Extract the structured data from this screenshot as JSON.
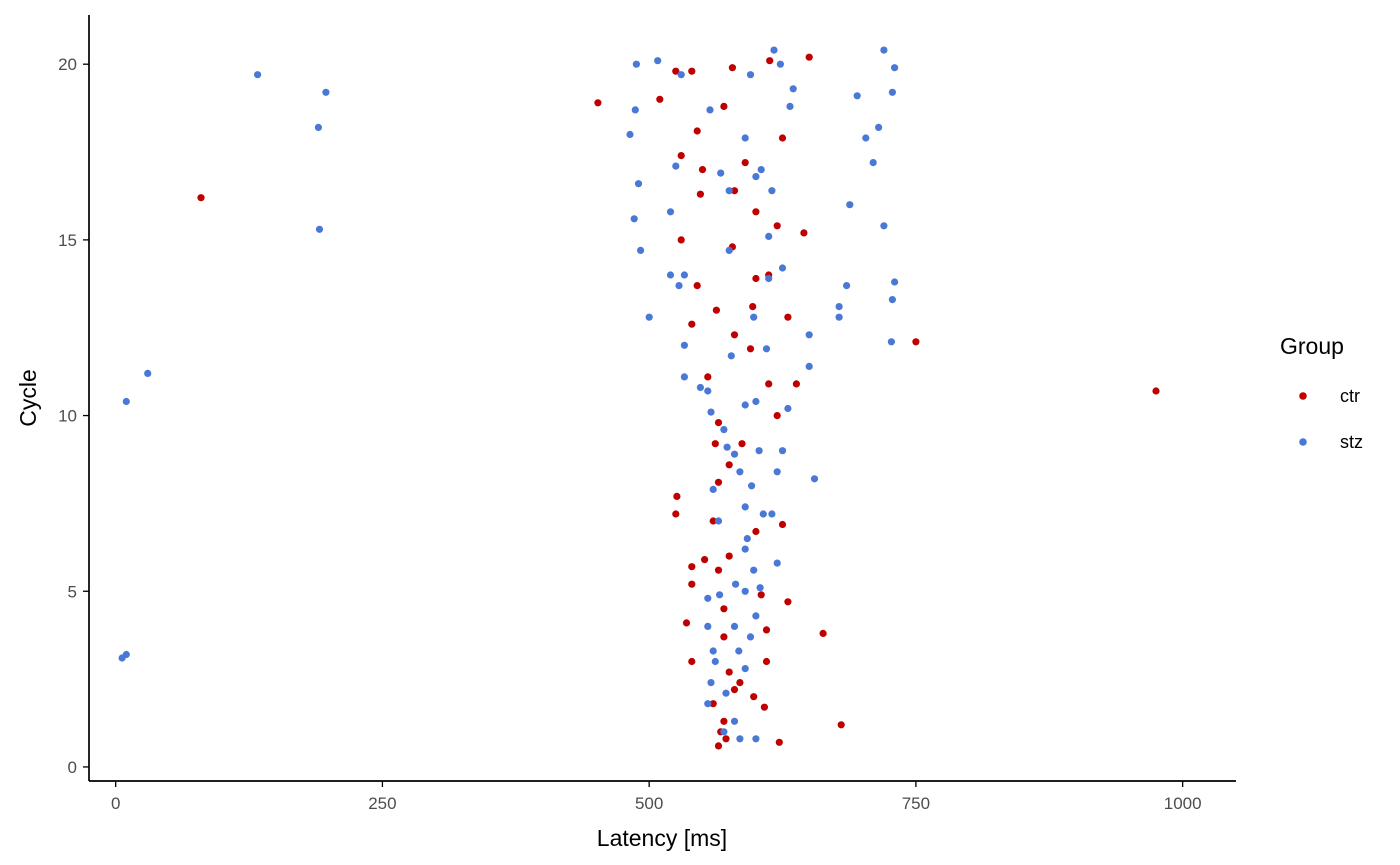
{
  "chart_data": {
    "type": "scatter",
    "title": "",
    "xlabel": "Latency [ms]",
    "ylabel": "Cycle",
    "xlim": [
      -25,
      1050
    ],
    "ylim": [
      -0.4,
      21.4
    ],
    "x_ticks": [
      0,
      250,
      500,
      750,
      1000
    ],
    "y_ticks": [
      0,
      5,
      10,
      15,
      20
    ],
    "x_tick_labels": [
      "0",
      "250",
      "500",
      "750",
      "1000"
    ],
    "y_tick_labels": [
      "0",
      "5",
      "10",
      "15",
      "20"
    ],
    "grid": false,
    "legend_placement": "right",
    "legend": {
      "title": "Group",
      "entries": [
        {
          "name": "ctr",
          "color": "#c00000"
        },
        {
          "name": "stz",
          "color": "#4a78d6"
        }
      ]
    },
    "series": [
      {
        "name": "ctr",
        "color": "#c00000",
        "points": [
          [
            80,
            16.2
          ],
          [
            452,
            18.9
          ],
          [
            975,
            10.7
          ],
          [
            750,
            12.1
          ],
          [
            680,
            1.2
          ],
          [
            663,
            3.8
          ],
          [
            510,
            19.0
          ],
          [
            525,
            19.8
          ],
          [
            540,
            19.8
          ],
          [
            578,
            19.9
          ],
          [
            613,
            20.1
          ],
          [
            650,
            20.2
          ],
          [
            570,
            18.8
          ],
          [
            545,
            18.1
          ],
          [
            530,
            17.4
          ],
          [
            550,
            17.0
          ],
          [
            580,
            16.4
          ],
          [
            600,
            15.8
          ],
          [
            620,
            15.4
          ],
          [
            645,
            15.2
          ],
          [
            530,
            15.0
          ],
          [
            578,
            14.8
          ],
          [
            612,
            14.0
          ],
          [
            545,
            13.7
          ],
          [
            597,
            13.1
          ],
          [
            630,
            12.8
          ],
          [
            580,
            12.3
          ],
          [
            595,
            11.9
          ],
          [
            555,
            11.1
          ],
          [
            612,
            10.9
          ],
          [
            638,
            10.9
          ],
          [
            620,
            10.0
          ],
          [
            565,
            9.8
          ],
          [
            587,
            9.2
          ],
          [
            575,
            8.6
          ],
          [
            565,
            8.1
          ],
          [
            526,
            7.7
          ],
          [
            525,
            7.2
          ],
          [
            560,
            7.0
          ],
          [
            600,
            6.7
          ],
          [
            625,
            6.9
          ],
          [
            575,
            6.0
          ],
          [
            565,
            5.6
          ],
          [
            540,
            5.7
          ],
          [
            540,
            5.2
          ],
          [
            605,
            4.9
          ],
          [
            630,
            4.7
          ],
          [
            535,
            4.1
          ],
          [
            570,
            3.7
          ],
          [
            610,
            3.9
          ],
          [
            540,
            3.0
          ],
          [
            575,
            2.7
          ],
          [
            610,
            3.0
          ],
          [
            580,
            2.2
          ],
          [
            560,
            1.8
          ],
          [
            608,
            1.7
          ],
          [
            570,
            1.3
          ],
          [
            572,
            0.8
          ],
          [
            622,
            0.7
          ],
          [
            565,
            0.6
          ],
          [
            585,
            2.4
          ],
          [
            590,
            17.2
          ],
          [
            625,
            17.9
          ],
          [
            563,
            13.0
          ],
          [
            548,
            16.3
          ],
          [
            600,
            13.9
          ],
          [
            540,
            12.6
          ],
          [
            562,
            9.2
          ],
          [
            552,
            5.9
          ],
          [
            570,
            4.5
          ],
          [
            598,
            2.0
          ],
          [
            567,
            1.0
          ]
        ]
      },
      {
        "name": "stz",
        "color": "#4a78d6",
        "points": [
          [
            133,
            19.7
          ],
          [
            197,
            19.2
          ],
          [
            190,
            18.2
          ],
          [
            191,
            15.3
          ],
          [
            30,
            11.2
          ],
          [
            10,
            10.4
          ],
          [
            10,
            3.2
          ],
          [
            6,
            3.1
          ],
          [
            488,
            20.0
          ],
          [
            508,
            20.1
          ],
          [
            617,
            20.4
          ],
          [
            720,
            20.4
          ],
          [
            623,
            20.0
          ],
          [
            595,
            19.7
          ],
          [
            730,
            19.9
          ],
          [
            635,
            19.3
          ],
          [
            695,
            19.1
          ],
          [
            728,
            19.2
          ],
          [
            482,
            18.0
          ],
          [
            487,
            18.7
          ],
          [
            632,
            18.8
          ],
          [
            715,
            18.2
          ],
          [
            703,
            17.9
          ],
          [
            710,
            17.2
          ],
          [
            490,
            16.6
          ],
          [
            525,
            17.1
          ],
          [
            688,
            16.0
          ],
          [
            486,
            15.6
          ],
          [
            520,
            15.8
          ],
          [
            720,
            15.4
          ],
          [
            492,
            14.7
          ],
          [
            685,
            13.7
          ],
          [
            730,
            13.8
          ],
          [
            728,
            13.3
          ],
          [
            678,
            13.1
          ],
          [
            678,
            12.8
          ],
          [
            727,
            12.1
          ],
          [
            500,
            12.8
          ],
          [
            533,
            12.0
          ],
          [
            533,
            11.1
          ],
          [
            650,
            12.3
          ],
          [
            650,
            11.4
          ],
          [
            555,
            10.7
          ],
          [
            600,
            10.4
          ],
          [
            630,
            10.2
          ],
          [
            625,
            9.0
          ],
          [
            655,
            8.2
          ],
          [
            620,
            8.4
          ],
          [
            560,
            7.9
          ],
          [
            590,
            7.4
          ],
          [
            615,
            7.2
          ],
          [
            620,
            5.8
          ],
          [
            598,
            5.6
          ],
          [
            590,
            5.0
          ],
          [
            555,
            4.8
          ],
          [
            555,
            4.0
          ],
          [
            595,
            3.7
          ],
          [
            560,
            3.3
          ],
          [
            558,
            2.4
          ],
          [
            555,
            1.8
          ],
          [
            570,
            1.0
          ],
          [
            585,
            0.8
          ],
          [
            600,
            0.8
          ],
          [
            590,
            2.8
          ],
          [
            580,
            4.0
          ],
          [
            590,
            6.2
          ],
          [
            565,
            7.0
          ],
          [
            580,
            8.9
          ],
          [
            570,
            9.6
          ],
          [
            610,
            11.9
          ],
          [
            612,
            13.9
          ],
          [
            625,
            14.2
          ],
          [
            615,
            16.4
          ],
          [
            605,
            17.0
          ],
          [
            530,
            19.7
          ],
          [
            557,
            18.7
          ],
          [
            590,
            17.9
          ],
          [
            567,
            16.9
          ],
          [
            575,
            16.4
          ],
          [
            520,
            14.0
          ],
          [
            533,
            14.0
          ],
          [
            528,
            13.7
          ],
          [
            548,
            10.8
          ],
          [
            558,
            10.1
          ],
          [
            573,
            9.1
          ],
          [
            585,
            8.4
          ],
          [
            592,
            6.5
          ],
          [
            604,
            5.1
          ],
          [
            566,
            4.9
          ],
          [
            562,
            3.0
          ],
          [
            572,
            2.1
          ],
          [
            580,
            1.3
          ],
          [
            600,
            16.8
          ],
          [
            612,
            15.1
          ],
          [
            575,
            14.7
          ],
          [
            598,
            12.8
          ],
          [
            577,
            11.7
          ],
          [
            590,
            10.3
          ],
          [
            603,
            9.0
          ],
          [
            596,
            8.0
          ],
          [
            607,
            7.2
          ],
          [
            581,
            5.2
          ],
          [
            600,
            4.3
          ],
          [
            584,
            3.3
          ]
        ]
      }
    ]
  }
}
